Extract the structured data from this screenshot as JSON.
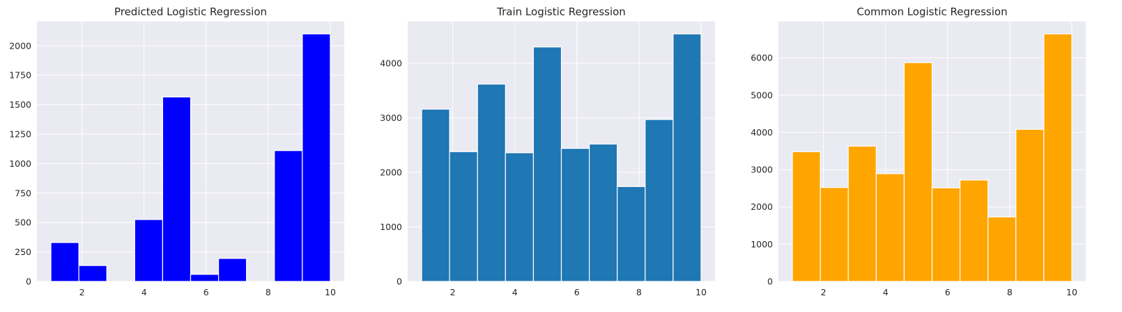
{
  "chart_data": [
    {
      "type": "bar",
      "title": "Predicted Logistic Regression",
      "xlabel": "",
      "ylabel": "",
      "x_bin_edges": [
        1.0,
        1.9,
        2.8,
        3.7,
        4.6,
        5.5,
        6.4,
        7.3,
        8.2,
        9.1,
        10.0
      ],
      "values": [
        330,
        135,
        0,
        525,
        1565,
        60,
        195,
        0,
        1110,
        2100
      ],
      "xlim": [
        0.55,
        10.45
      ],
      "ylim": [
        0,
        2205
      ],
      "xticks": [
        2,
        4,
        6,
        8,
        10
      ],
      "yticks": [
        0,
        250,
        500,
        750,
        1000,
        1250,
        1500,
        1750,
        2000
      ],
      "grid": true,
      "bar_color": "#0000ff"
    },
    {
      "type": "bar",
      "title": "Train Logistic Regression",
      "xlabel": "",
      "ylabel": "",
      "x_bin_edges": [
        1.0,
        1.9,
        2.8,
        3.7,
        4.6,
        5.5,
        6.4,
        7.3,
        8.2,
        9.1,
        10.0
      ],
      "values": [
        3160,
        2380,
        3620,
        2360,
        4300,
        2440,
        2520,
        1740,
        2970,
        4540
      ],
      "xlim": [
        0.55,
        10.45
      ],
      "ylim": [
        0,
        4767
      ],
      "xticks": [
        2,
        4,
        6,
        8,
        10
      ],
      "yticks": [
        0,
        1000,
        2000,
        3000,
        4000
      ],
      "grid": true,
      "bar_color": "#1f77b4"
    },
    {
      "type": "bar",
      "title": "Common Logistic Regression",
      "xlabel": "",
      "ylabel": "",
      "x_bin_edges": [
        1.0,
        1.9,
        2.8,
        3.7,
        4.6,
        5.5,
        6.4,
        7.3,
        8.2,
        9.1,
        10.0
      ],
      "values": [
        3480,
        2520,
        3630,
        2890,
        5870,
        2510,
        2720,
        1730,
        4080,
        6640
      ],
      "xlim": [
        0.55,
        10.45
      ],
      "ylim": [
        0,
        6972
      ],
      "xticks": [
        2,
        4,
        6,
        8,
        10
      ],
      "yticks": [
        0,
        1000,
        2000,
        3000,
        4000,
        5000,
        6000
      ],
      "grid": true,
      "bar_color": "#ffa500"
    }
  ]
}
